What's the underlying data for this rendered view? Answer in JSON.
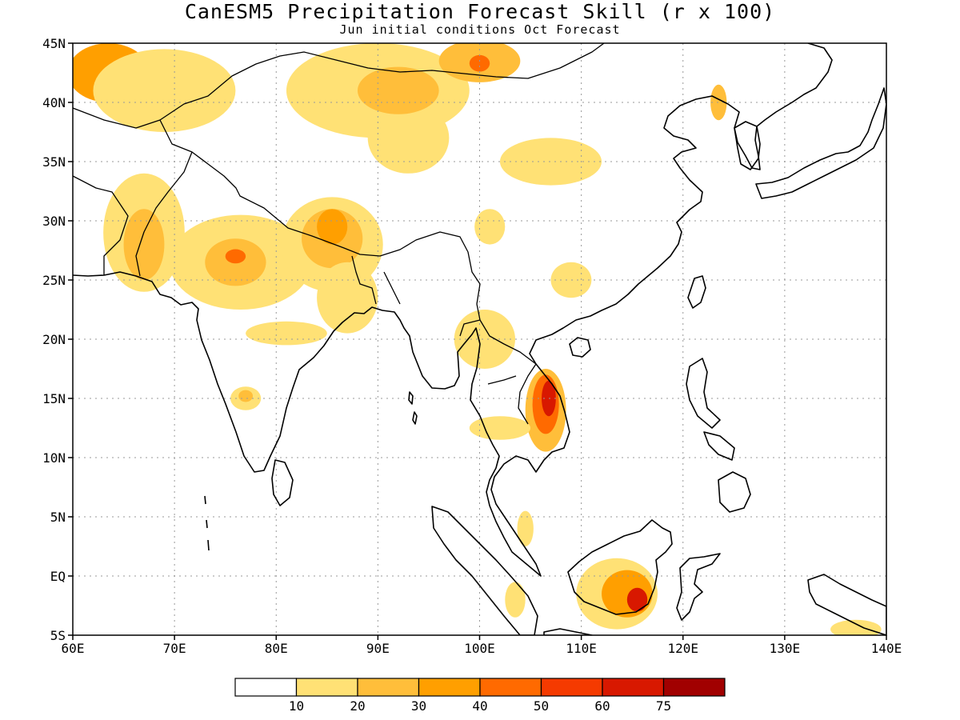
{
  "title": "CanESM5 Precipitation Forecast Skill (r x 100)",
  "subtitle": "Jun initial conditions  Oct Forecast",
  "map": {
    "lon_range": [
      60,
      140
    ],
    "lat_range": [
      -5,
      45
    ],
    "lon_ticks": [
      {
        "value": 60,
        "label": "60E"
      },
      {
        "value": 70,
        "label": "70E"
      },
      {
        "value": 80,
        "label": "80E"
      },
      {
        "value": 90,
        "label": "90E"
      },
      {
        "value": 100,
        "label": "100E"
      },
      {
        "value": 110,
        "label": "110E"
      },
      {
        "value": 120,
        "label": "120E"
      },
      {
        "value": 130,
        "label": "130E"
      },
      {
        "value": 140,
        "label": "140E"
      }
    ],
    "lat_ticks": [
      {
        "value": 45,
        "label": "45N"
      },
      {
        "value": 40,
        "label": "40N"
      },
      {
        "value": 35,
        "label": "35N"
      },
      {
        "value": 30,
        "label": "30N"
      },
      {
        "value": 25,
        "label": "25N"
      },
      {
        "value": 20,
        "label": "20N"
      },
      {
        "value": 15,
        "label": "15N"
      },
      {
        "value": 10,
        "label": "10N"
      },
      {
        "value": 5,
        "label": "5N"
      },
      {
        "value": 0,
        "label": "EQ"
      },
      {
        "value": -5,
        "label": "5S"
      }
    ],
    "gridlines": "dotted"
  },
  "colorbar": {
    "colors": [
      "#ffffff",
      "#ffe175",
      "#ffbe3a",
      "#ff9f00",
      "#ff6a00",
      "#f53a00",
      "#d81800",
      "#a10000"
    ],
    "labels": [
      "10",
      "20",
      "30",
      "40",
      "50",
      "60",
      "75"
    ]
  },
  "chart_data": {
    "type": "heatmap",
    "variable": "precipitation forecast skill (r x 100)",
    "levels": [
      10,
      20,
      30,
      40,
      50,
      60,
      75
    ],
    "regions": [
      {
        "lon": 63.5,
        "lat": 42.5,
        "rx": 4,
        "ry": 2.5,
        "level": 3
      },
      {
        "lon": 69,
        "lat": 41,
        "rx": 7,
        "ry": 3.5,
        "level": 1
      },
      {
        "lon": 67,
        "lat": 29,
        "rx": 4,
        "ry": 5,
        "level": 1
      },
      {
        "lon": 67,
        "lat": 28,
        "rx": 2,
        "ry": 3,
        "level": 2
      },
      {
        "lon": 76.5,
        "lat": 26.5,
        "rx": 7,
        "ry": 4,
        "level": 1
      },
      {
        "lon": 76,
        "lat": 26.5,
        "rx": 3,
        "ry": 2,
        "level": 2
      },
      {
        "lon": 76,
        "lat": 27,
        "rx": 1,
        "ry": 0.6,
        "level": 4
      },
      {
        "lon": 85.5,
        "lat": 28,
        "rx": 5,
        "ry": 4,
        "level": 1
      },
      {
        "lon": 85.5,
        "lat": 28.5,
        "rx": 3,
        "ry": 2.5,
        "level": 2
      },
      {
        "lon": 85.5,
        "lat": 29.5,
        "rx": 1.5,
        "ry": 1.5,
        "level": 3
      },
      {
        "lon": 87,
        "lat": 23.5,
        "rx": 3,
        "ry": 3,
        "level": 1
      },
      {
        "lon": 81,
        "lat": 20.5,
        "rx": 4,
        "ry": 1,
        "level": 1
      },
      {
        "lon": 90,
        "lat": 41,
        "rx": 9,
        "ry": 4,
        "level": 1
      },
      {
        "lon": 93,
        "lat": 37,
        "rx": 4,
        "ry": 3,
        "level": 1
      },
      {
        "lon": 92,
        "lat": 41,
        "rx": 4,
        "ry": 2,
        "level": 2
      },
      {
        "lon": 100,
        "lat": 43.5,
        "rx": 4,
        "ry": 1.8,
        "level": 2
      },
      {
        "lon": 100,
        "lat": 43.3,
        "rx": 1,
        "ry": 0.7,
        "level": 4
      },
      {
        "lon": 107,
        "lat": 35,
        "rx": 5,
        "ry": 2,
        "level": 1
      },
      {
        "lon": 101,
        "lat": 29.5,
        "rx": 1.5,
        "ry": 1.5,
        "level": 1
      },
      {
        "lon": 109,
        "lat": 25,
        "rx": 2,
        "ry": 1.5,
        "level": 1
      },
      {
        "lon": 106.5,
        "lat": 14,
        "rx": 2,
        "ry": 3.5,
        "level": 2
      },
      {
        "lon": 106.5,
        "lat": 14.5,
        "rx": 1.3,
        "ry": 2.5,
        "level": 4
      },
      {
        "lon": 106.8,
        "lat": 15,
        "rx": 0.7,
        "ry": 1.5,
        "level": 6
      },
      {
        "lon": 113.5,
        "lat": -1.5,
        "rx": 4,
        "ry": 3,
        "level": 1
      },
      {
        "lon": 114.5,
        "lat": -1.5,
        "rx": 2.5,
        "ry": 2,
        "level": 3
      },
      {
        "lon": 115.5,
        "lat": -2,
        "rx": 1,
        "ry": 1,
        "level": 6
      },
      {
        "lon": 123.5,
        "lat": 40,
        "rx": 0.8,
        "ry": 1.5,
        "level": 2
      },
      {
        "lon": 100.5,
        "lat": 20,
        "rx": 3,
        "ry": 2.5,
        "level": 1
      },
      {
        "lon": 102,
        "lat": 12.5,
        "rx": 3,
        "ry": 1,
        "level": 1
      },
      {
        "lon": 77,
        "lat": 15,
        "rx": 1.5,
        "ry": 1,
        "level": 1
      },
      {
        "lon": 77,
        "lat": 15.2,
        "rx": 0.7,
        "ry": 0.5,
        "level": 2
      },
      {
        "lon": 104.5,
        "lat": 4,
        "rx": 0.8,
        "ry": 1.5,
        "level": 1
      },
      {
        "lon": 103.5,
        "lat": -2,
        "rx": 1,
        "ry": 1.5,
        "level": 1
      },
      {
        "lon": 137,
        "lat": -4.5,
        "rx": 2.5,
        "ry": 0.8,
        "level": 1
      }
    ]
  }
}
